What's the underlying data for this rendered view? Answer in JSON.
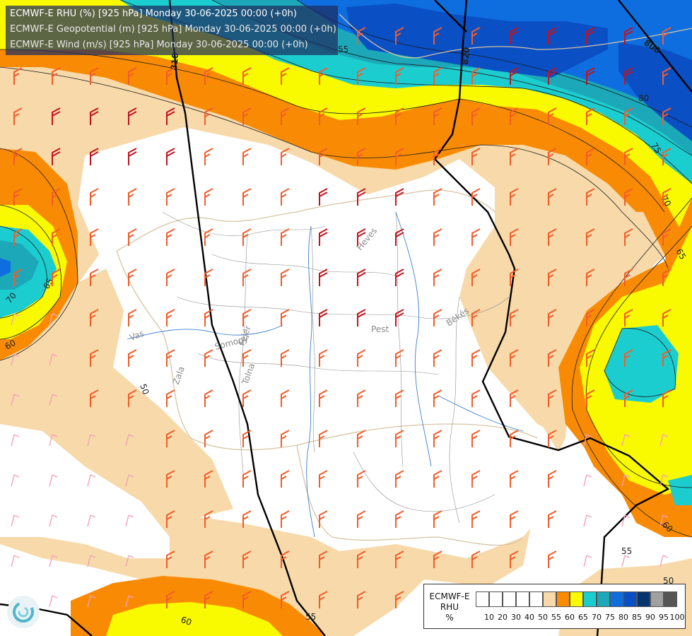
{
  "header": {
    "line1": "ECMWF-E RHU (%) [925 hPa] Monday 30-06-2025 00:00 (+0h)",
    "line2": "ECMWF-E Geopotential (m) [925 hPa] Monday 30-06-2025 00:00 (+0h)",
    "line3": "ECMWF-E Wind (m/s) [925 hPa] Monday 30-06-2025 00:00 (+0h)"
  },
  "legend": {
    "title_line1": "ECMWF-E",
    "title_line2": "RHU",
    "title_line3": "%",
    "colors": [
      "#ffffff",
      "#ffffff",
      "#ffffff",
      "#ffffff",
      "#ffffff",
      "#f7d9aa",
      "#f98b04",
      "#f9f900",
      "#1ccdd0",
      "#1ca8b8",
      "#0e6ee0",
      "#0a4fc4",
      "#06346e",
      "#a0a0a0",
      "#555555"
    ],
    "ticks": [
      "10",
      "20",
      "30",
      "40",
      "50",
      "55",
      "60",
      "65",
      "70",
      "75",
      "80",
      "85",
      "90",
      "95",
      "100"
    ]
  },
  "contour_labels": {
    "geopotential": [
      "810",
      "820",
      "800"
    ],
    "rhu": [
      "80",
      "75",
      "70",
      "65",
      "60",
      "55",
      "50",
      "70",
      "65",
      "60",
      "50",
      "60",
      "55",
      "55"
    ]
  },
  "region_labels": [
    "Heves",
    "Pest",
    "Békés",
    "Vas",
    "Fejér",
    "Tolna",
    "Zala",
    "Somogy"
  ],
  "wind_colors": {
    "calm": "#f4a0b8",
    "light": "#f25c2a",
    "strong": "#c3121d"
  }
}
